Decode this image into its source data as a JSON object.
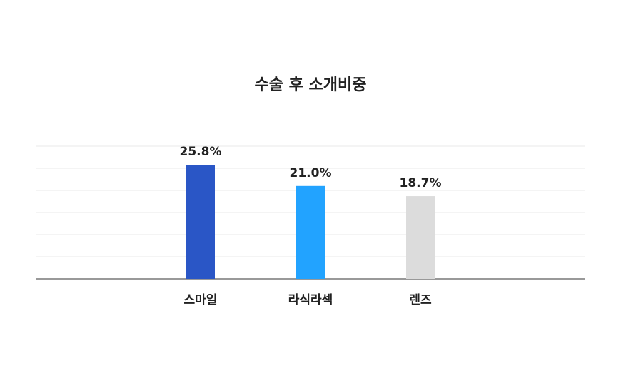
{
  "chart_data": {
    "type": "bar",
    "title": "수술 후 소개비중",
    "categories": [
      "스마일",
      "라식라섹",
      "렌즈"
    ],
    "values": [
      25.8,
      21.0,
      18.7
    ],
    "value_labels": [
      "25.8%",
      "21.0%",
      "18.7%"
    ],
    "colors": [
      "#2a56c6",
      "#22a3ff",
      "#dcdcdc"
    ],
    "ylim": [
      0,
      30
    ],
    "yticks": [
      0,
      5,
      10,
      15,
      20,
      25,
      30
    ],
    "grid": true
  }
}
